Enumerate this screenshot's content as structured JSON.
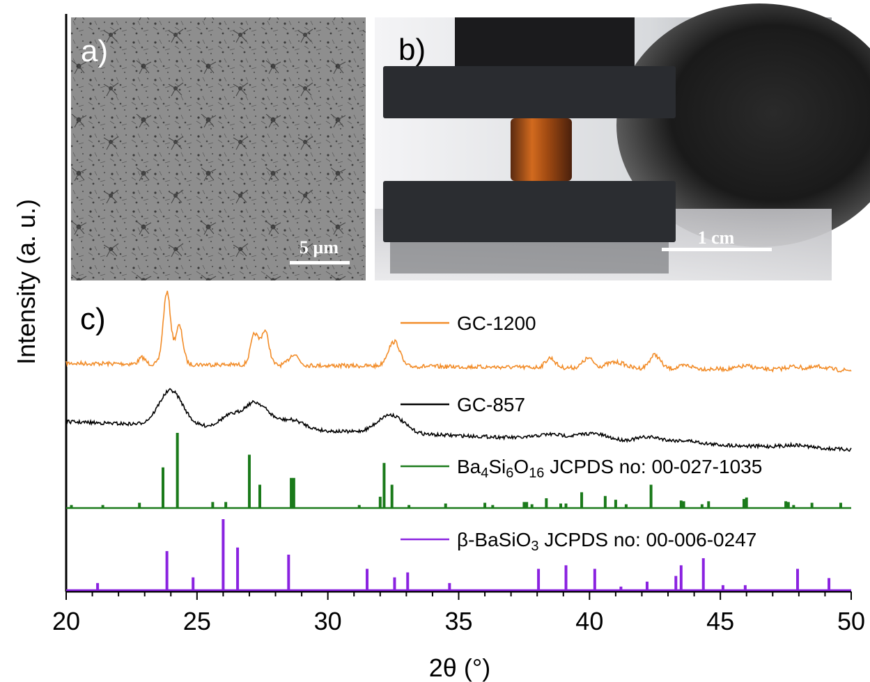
{
  "figure": {
    "panels": [
      {
        "label": "a)",
        "scale_bar": "5 µm"
      },
      {
        "label": "b)",
        "scale_bar": "1 cm"
      },
      {
        "label": "c)"
      }
    ]
  },
  "chart_data": {
    "type": "line",
    "xlabel": "2θ (°)",
    "ylabel": "Intensity (a. u.)",
    "xlim": [
      20,
      50
    ],
    "xticks": [
      20,
      25,
      30,
      35,
      40,
      45,
      50
    ],
    "grid": false,
    "series": [
      {
        "name": "GC-1200",
        "style": "line",
        "color": "#f28c28",
        "peaks": [
          {
            "x": 22.9,
            "h": 0.08,
            "w": 0.12
          },
          {
            "x": 23.85,
            "h": 0.9,
            "w": 0.14
          },
          {
            "x": 24.32,
            "h": 0.48,
            "w": 0.14
          },
          {
            "x": 27.2,
            "h": 0.38,
            "w": 0.15
          },
          {
            "x": 27.6,
            "h": 0.42,
            "w": 0.15
          },
          {
            "x": 28.7,
            "h": 0.14,
            "w": 0.18
          },
          {
            "x": 32.4,
            "h": 0.2,
            "w": 0.18
          },
          {
            "x": 32.65,
            "h": 0.2,
            "w": 0.16
          },
          {
            "x": 38.5,
            "h": 0.12,
            "w": 0.18
          },
          {
            "x": 39.95,
            "h": 0.12,
            "w": 0.2
          },
          {
            "x": 40.8,
            "h": 0.05,
            "w": 0.25
          },
          {
            "x": 41.2,
            "h": 0.05,
            "w": 0.25
          },
          {
            "x": 42.5,
            "h": 0.17,
            "w": 0.2
          },
          {
            "x": 43.7,
            "h": 0.04,
            "w": 0.25
          },
          {
            "x": 46.0,
            "h": 0.04,
            "w": 0.3
          },
          {
            "x": 47.8,
            "h": 0.04,
            "w": 0.3
          },
          {
            "x": 48.8,
            "h": 0.04,
            "w": 0.3
          }
        ]
      },
      {
        "name": "GC-857",
        "style": "line",
        "color": "#000000",
        "peaks": [
          {
            "x": 24.0,
            "h": 0.72,
            "w": 0.45
          },
          {
            "x": 26.3,
            "h": 0.25,
            "w": 0.4
          },
          {
            "x": 27.1,
            "h": 0.4,
            "w": 0.35
          },
          {
            "x": 27.6,
            "h": 0.25,
            "w": 0.35
          },
          {
            "x": 28.6,
            "h": 0.2,
            "w": 0.5
          },
          {
            "x": 32.4,
            "h": 0.38,
            "w": 0.5
          },
          {
            "x": 38.5,
            "h": 0.09,
            "w": 0.5
          },
          {
            "x": 40.1,
            "h": 0.14,
            "w": 0.6
          },
          {
            "x": 42.3,
            "h": 0.11,
            "w": 0.5
          },
          {
            "x": 43.7,
            "h": 0.06,
            "w": 0.5
          },
          {
            "x": 47.9,
            "h": 0.05,
            "w": 0.5
          }
        ]
      },
      {
        "name": "Ba4Si6O16 JCPDS no: 00-027-1035",
        "style": "stick",
        "color": "#1a7a1a",
        "x": [
          20.2,
          21.4,
          22.8,
          23.7,
          24.25,
          25.6,
          26.1,
          27.0,
          27.4,
          28.6,
          28.7,
          31.2,
          32.0,
          32.15,
          32.45,
          33.1,
          34.5,
          36.0,
          36.3,
          37.5,
          37.6,
          37.8,
          38.35,
          38.9,
          39.1,
          39.7,
          40.6,
          41.0,
          41.4,
          42.35,
          43.5,
          43.6,
          44.3,
          44.55,
          45.9,
          46.0,
          47.5,
          47.6,
          47.8,
          48.5,
          49.6
        ],
        "values": [
          0.04,
          0.04,
          0.07,
          0.54,
          1.0,
          0.08,
          0.08,
          0.71,
          0.31,
          0.4,
          0.4,
          0.04,
          0.15,
          0.6,
          0.31,
          0.04,
          0.06,
          0.07,
          0.04,
          0.08,
          0.08,
          0.05,
          0.13,
          0.06,
          0.06,
          0.21,
          0.16,
          0.11,
          0.05,
          0.31,
          0.1,
          0.09,
          0.05,
          0.09,
          0.12,
          0.14,
          0.09,
          0.08,
          0.04,
          0.07,
          0.07
        ]
      },
      {
        "name": "β-BaSiO3 JCPDS no: 00-006-0247",
        "style": "stick",
        "color": "#8a22e0",
        "x": [
          21.2,
          23.85,
          24.85,
          26.0,
          26.55,
          28.5,
          31.5,
          32.55,
          33.05,
          34.65,
          38.05,
          39.1,
          40.2,
          41.2,
          42.2,
          43.3,
          43.5,
          44.35,
          45.1,
          45.95,
          47.95,
          49.15
        ],
        "values": [
          0.1,
          0.55,
          0.18,
          1.0,
          0.6,
          0.5,
          0.3,
          0.18,
          0.25,
          0.1,
          0.3,
          0.35,
          0.3,
          0.05,
          0.12,
          0.2,
          0.35,
          0.45,
          0.07,
          0.07,
          0.3,
          0.17
        ]
      }
    ]
  }
}
